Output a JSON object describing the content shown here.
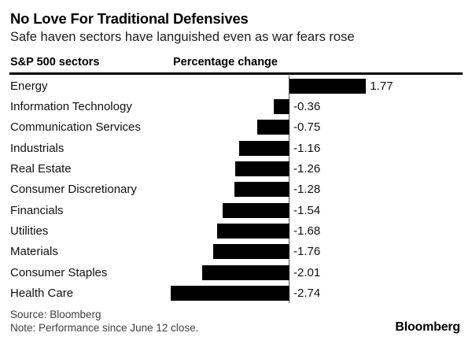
{
  "chart_data": {
    "type": "bar",
    "orientation": "horizontal",
    "title": "No Love For Traditional Defensives",
    "subtitle": "Safe haven sectors have languished even as war fears rose",
    "ylabel": "S&P 500 sectors",
    "xlabel": "Percentage change",
    "categories": [
      "Energy",
      "Information Technology",
      "Communication Services",
      "Industrials",
      "Real Estate",
      "Consumer Discretionary",
      "Financials",
      "Utilities",
      "Materials",
      "Consumer Staples",
      "Health Care"
    ],
    "values": [
      1.77,
      -0.36,
      -0.75,
      -1.16,
      -1.26,
      -1.28,
      -1.54,
      -1.68,
      -1.76,
      -2.01,
      -2.74
    ],
    "value_labels": [
      "1.77",
      "-0.36",
      "-0.75",
      "-1.16",
      "-1.26",
      "-1.28",
      "-1.54",
      "-1.68",
      "-1.76",
      "-2.01",
      "-2.74"
    ],
    "baseline_value": 0,
    "xlim": [
      -2.9,
      2.0
    ],
    "grid": false,
    "legend": "none",
    "bar_color": "#000000",
    "zero_line_color": "#4f4f4f"
  },
  "footer": {
    "source": "Source: Bloomberg",
    "note": "Note: Performance since June 12 close.",
    "brand": "Bloomberg"
  }
}
